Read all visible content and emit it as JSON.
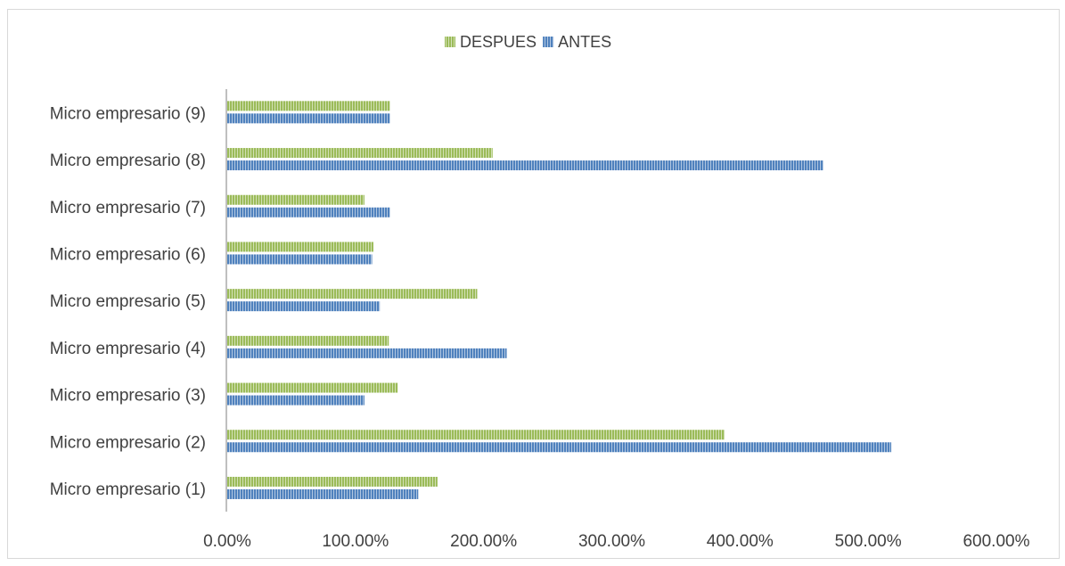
{
  "chart_data": {
    "type": "bar",
    "orientation": "horizontal",
    "categories": [
      "Micro empresario (1)",
      "Micro empresario (2)",
      "Micro empresario (3)",
      "Micro empresario (4)",
      "Micro empresario (5)",
      "Micro empresario (6)",
      "Micro empresario (7)",
      "Micro empresario (8)",
      "Micro empresario (9)"
    ],
    "series": [
      {
        "name": "DESPUES",
        "color": "#9BBB59",
        "values": [
          164,
          388,
          133,
          126,
          195,
          114,
          107,
          207,
          127
        ]
      },
      {
        "name": "ANTES",
        "color": "#4F81BD",
        "values": [
          149,
          518,
          107,
          218,
          119,
          113,
          127,
          465,
          127
        ]
      }
    ],
    "xlim": [
      0,
      600
    ],
    "xticks": [
      0,
      100,
      200,
      300,
      400,
      500,
      600
    ],
    "xtick_labels": [
      "0.00%",
      "100.00%",
      "200.00%",
      "300.00%",
      "400.00%",
      "500.00%",
      "600.00%"
    ],
    "legend": {
      "position": "top-center",
      "entries": [
        "DESPUES",
        "ANTES"
      ]
    },
    "grid": false,
    "bar_fill": "striped"
  }
}
